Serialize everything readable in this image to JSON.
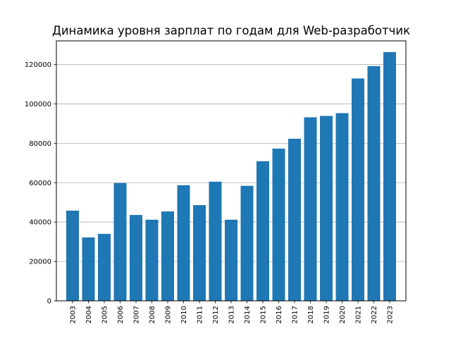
{
  "chart_data": {
    "type": "bar",
    "title": "Динамика уровня зарплат по годам для Web-разработчик",
    "xlabel": "",
    "ylabel": "",
    "categories": [
      "2003",
      "2004",
      "2005",
      "2006",
      "2007",
      "2008",
      "2009",
      "2010",
      "2011",
      "2012",
      "2013",
      "2014",
      "2015",
      "2016",
      "2017",
      "2018",
      "2019",
      "2020",
      "2021",
      "2022",
      "2023"
    ],
    "values": [
      45800,
      32200,
      34000,
      59800,
      43600,
      41200,
      45400,
      58700,
      48600,
      60500,
      41200,
      58400,
      70900,
      77300,
      82300,
      93200,
      93900,
      95300,
      112900,
      119200,
      126300
    ],
    "ylim": [
      0,
      132000
    ],
    "yticks": [
      0,
      20000,
      40000,
      60000,
      80000,
      100000,
      120000
    ],
    "grid": "y-axis horizontal lines",
    "bar_color": "#1f77b4"
  }
}
